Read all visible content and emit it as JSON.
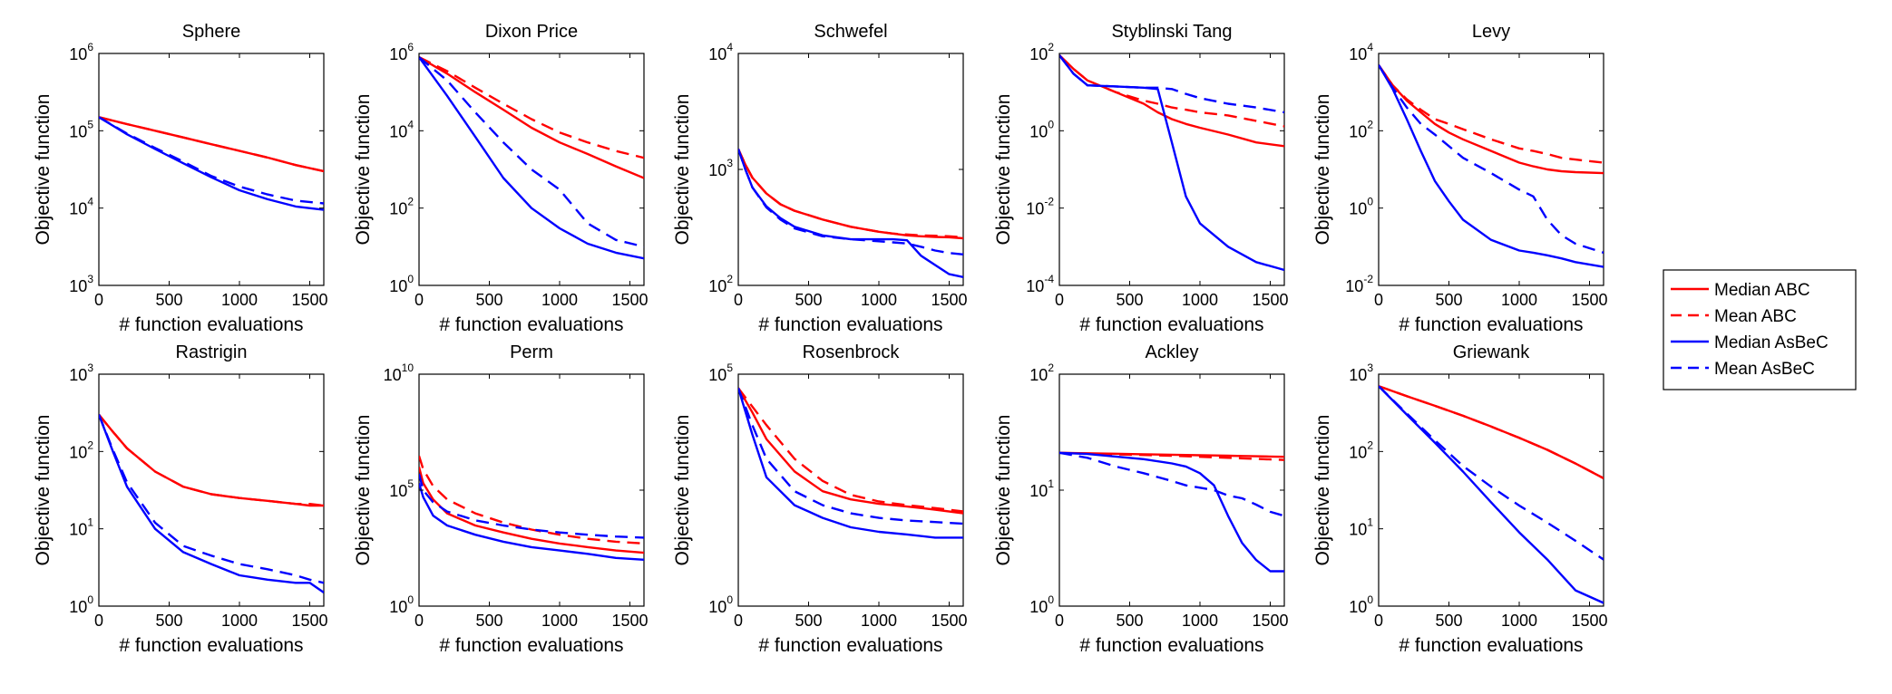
{
  "xlabel": "# function evaluations",
  "ylabel": "Objective function",
  "legend": {
    "placement": "right",
    "entries": [
      {
        "name": "Median ABC",
        "color": "#ff0000",
        "dash": "solid"
      },
      {
        "name": "Mean ABC",
        "color": "#ff0000",
        "dash": "dashed"
      },
      {
        "name": "Median AsBeC",
        "color": "#0000ff",
        "dash": "solid"
      },
      {
        "name": "Mean AsBeC",
        "color": "#0000ff",
        "dash": "dashed"
      }
    ]
  },
  "chart_data": [
    {
      "type": "line",
      "title": "Sphere",
      "xlabel": "# function evaluations",
      "ylabel": "Objective function",
      "xlim": [
        0,
        1600
      ],
      "xticks": [
        "0",
        "500",
        "1000",
        "1500"
      ],
      "yscale": "log",
      "ylim_exp": [
        3,
        6
      ],
      "yticks_exp": [
        "3",
        "4",
        "5",
        "6"
      ],
      "x": [
        0,
        200,
        400,
        600,
        800,
        1000,
        1200,
        1400,
        1600
      ],
      "series": [
        {
          "name": "Median ABC",
          "values": [
            150000,
            122000,
            100000,
            82000,
            67000,
            55000,
            45000,
            36000,
            30000
          ]
        },
        {
          "name": "Mean ABC",
          "values": [
            150000,
            122000,
            100000,
            82000,
            67000,
            55000,
            45000,
            36000,
            30000
          ]
        },
        {
          "name": "Median AsBeC",
          "values": [
            150000,
            90000,
            58000,
            38000,
            25000,
            17000,
            13000,
            10500,
            9500
          ]
        },
        {
          "name": "Mean AsBeC",
          "values": [
            150000,
            92000,
            60000,
            40000,
            26000,
            19000,
            15000,
            12500,
            11500
          ]
        }
      ]
    },
    {
      "type": "line",
      "title": "Dixon Price",
      "xlabel": "# function evaluations",
      "ylabel": "Objective function",
      "xlim": [
        0,
        1600
      ],
      "xticks": [
        "0",
        "500",
        "1000",
        "1500"
      ],
      "yscale": "log",
      "ylim_exp": [
        0,
        6
      ],
      "yticks_exp": [
        "0",
        "2",
        "4",
        "6"
      ],
      "x": [
        0,
        200,
        400,
        600,
        800,
        1000,
        1200,
        1400,
        1600
      ],
      "series": [
        {
          "name": "Median ABC",
          "values": [
            800000,
            300000,
            100000,
            35000,
            12000,
            5000,
            2500,
            1200,
            600
          ]
        },
        {
          "name": "Mean ABC",
          "values": [
            800000,
            350000,
            130000,
            50000,
            20000,
            9000,
            5000,
            3000,
            2000
          ]
        },
        {
          "name": "Median AsBeC",
          "values": [
            800000,
            80000,
            7000,
            600,
            100,
            30,
            12,
            7,
            5
          ]
        },
        {
          "name": "Mean AsBeC",
          "values": [
            800000,
            200000,
            30000,
            5000,
            1000,
            300,
            40,
            15,
            10
          ]
        }
      ]
    },
    {
      "type": "line",
      "title": "Schwefel",
      "xlabel": "# function evaluations",
      "ylabel": "Objective function",
      "xlim": [
        0,
        1600
      ],
      "xticks": [
        "0",
        "500",
        "1000",
        "1500"
      ],
      "yscale": "log",
      "ylim_exp": [
        2,
        4
      ],
      "yticks_exp": [
        "2",
        "3",
        "4"
      ],
      "x": [
        0,
        50,
        100,
        200,
        300,
        400,
        600,
        800,
        1000,
        1100,
        1200,
        1300,
        1400,
        1500,
        1600
      ],
      "series": [
        {
          "name": "Median ABC",
          "values": [
            1500,
            1100,
            850,
            620,
            500,
            440,
            370,
            320,
            290,
            280,
            270,
            265,
            262,
            260,
            255
          ]
        },
        {
          "name": "Mean ABC",
          "values": [
            1500,
            1100,
            850,
            620,
            500,
            440,
            370,
            320,
            290,
            280,
            275,
            270,
            268,
            265,
            260
          ]
        },
        {
          "name": "Median AsBeC",
          "values": [
            1500,
            1000,
            700,
            480,
            380,
            320,
            270,
            250,
            250,
            250,
            245,
            180,
            150,
            125,
            118
          ]
        },
        {
          "name": "Mean AsBeC",
          "values": [
            1500,
            1000,
            700,
            470,
            370,
            310,
            265,
            250,
            240,
            235,
            230,
            215,
            200,
            190,
            185
          ]
        }
      ]
    },
    {
      "type": "line",
      "title": "Styblinski Tang",
      "xlabel": "# function evaluations",
      "ylabel": "Objective function",
      "xlim": [
        0,
        1600
      ],
      "xticks": [
        "0",
        "500",
        "1000",
        "1500"
      ],
      "yscale": "log",
      "ylim_exp": [
        -4,
        2
      ],
      "yticks_exp": [
        "-4",
        "-2",
        "0",
        "2"
      ],
      "x": [
        0,
        100,
        200,
        400,
        600,
        700,
        800,
        900,
        1000,
        1200,
        1400,
        1600
      ],
      "series": [
        {
          "name": "Median ABC",
          "values": [
            90,
            40,
            20,
            10,
            5,
            3,
            2,
            1.5,
            1.2,
            0.8,
            0.5,
            0.4
          ]
        },
        {
          "name": "Mean ABC",
          "values": [
            90,
            40,
            20,
            10,
            6,
            5,
            4,
            3.5,
            3,
            2.5,
            1.8,
            1.3
          ]
        },
        {
          "name": "Median AsBeC",
          "values": [
            90,
            30,
            15,
            14,
            13,
            12,
            0.5,
            0.02,
            0.004,
            0.001,
            0.0004,
            0.00025
          ]
        },
        {
          "name": "Mean AsBeC",
          "values": [
            90,
            30,
            15,
            14,
            13,
            13,
            12,
            9,
            7,
            5,
            4,
            3
          ]
        }
      ]
    },
    {
      "type": "line",
      "title": "Levy",
      "xlabel": "# function evaluations",
      "ylabel": "Objective function",
      "xlim": [
        0,
        1600
      ],
      "xticks": [
        "0",
        "500",
        "1000",
        "1500"
      ],
      "yscale": "log",
      "ylim_exp": [
        -2,
        4
      ],
      "yticks_exp": [
        "-2",
        "0",
        "2",
        "4"
      ],
      "x": [
        0,
        100,
        200,
        300,
        400,
        500,
        600,
        800,
        1000,
        1100,
        1200,
        1300,
        1400,
        1600
      ],
      "series": [
        {
          "name": "Median ABC",
          "values": [
            5000,
            1500,
            600,
            300,
            150,
            90,
            60,
            30,
            15,
            12,
            10,
            9,
            8.5,
            8
          ]
        },
        {
          "name": "Mean ABC",
          "values": [
            5000,
            1500,
            650,
            350,
            200,
            150,
            110,
            60,
            35,
            30,
            25,
            20,
            18,
            15
          ]
        },
        {
          "name": "Median AsBeC",
          "values": [
            5000,
            1200,
            200,
            30,
            5,
            1.5,
            0.5,
            0.15,
            0.08,
            0.07,
            0.06,
            0.05,
            0.04,
            0.03
          ]
        },
        {
          "name": "Mean AsBeC",
          "values": [
            5000,
            1300,
            400,
            150,
            80,
            40,
            20,
            8,
            3,
            2,
            0.5,
            0.2,
            0.12,
            0.07
          ]
        }
      ]
    },
    {
      "type": "line",
      "title": "Rastrigin",
      "xlabel": "# function evaluations",
      "ylabel": "Objective function",
      "xlim": [
        0,
        1600
      ],
      "xticks": [
        "0",
        "500",
        "1000",
        "1500"
      ],
      "yscale": "log",
      "ylim_exp": [
        0,
        3
      ],
      "yticks_exp": [
        "0",
        "1",
        "2",
        "3"
      ],
      "x": [
        0,
        100,
        200,
        400,
        600,
        800,
        1000,
        1200,
        1400,
        1500,
        1600
      ],
      "series": [
        {
          "name": "Median ABC",
          "values": [
            300,
            180,
            110,
            55,
            35,
            28,
            25,
            23,
            21,
            20,
            20
          ]
        },
        {
          "name": "Mean ABC",
          "values": [
            300,
            180,
            110,
            55,
            35,
            28,
            25,
            23,
            21,
            21,
            20
          ]
        },
        {
          "name": "Median AsBeC",
          "values": [
            300,
            100,
            35,
            10,
            5,
            3.5,
            2.5,
            2.2,
            2,
            2,
            1.5
          ]
        },
        {
          "name": "Mean AsBeC",
          "values": [
            300,
            105,
            40,
            12,
            6,
            4.5,
            3.5,
            3,
            2.5,
            2.2,
            2
          ]
        }
      ]
    },
    {
      "type": "line",
      "title": "Perm",
      "xlabel": "# function evaluations",
      "ylabel": "Objective function",
      "xlim": [
        0,
        1600
      ],
      "xticks": [
        "0",
        "500",
        "1000",
        "1500"
      ],
      "yscale": "log",
      "ylim_exp": [
        0,
        10
      ],
      "yticks_exp": [
        "0",
        "5",
        "10"
      ],
      "x": [
        0,
        30,
        100,
        200,
        400,
        600,
        800,
        1000,
        1200,
        1400,
        1600
      ],
      "series": [
        {
          "name": "Median ABC",
          "values": [
            1000000,
            200000,
            40000,
            10000,
            3000,
            1500,
            800,
            500,
            350,
            250,
            200
          ]
        },
        {
          "name": "Mean ABC",
          "values": [
            3000000,
            800000,
            150000,
            40000,
            10000,
            4000,
            2000,
            1200,
            800,
            600,
            500
          ]
        },
        {
          "name": "Median AsBeC",
          "values": [
            200000,
            50000,
            8000,
            3000,
            1200,
            600,
            350,
            250,
            180,
            120,
            100
          ]
        },
        {
          "name": "Mean AsBeC",
          "values": [
            500000,
            100000,
            30000,
            12000,
            5000,
            3000,
            2000,
            1500,
            1200,
            1000,
            900
          ]
        }
      ]
    },
    {
      "type": "line",
      "title": "Rosenbrock",
      "xlabel": "# function evaluations",
      "ylabel": "Objective function",
      "xlim": [
        0,
        1600
      ],
      "xticks": [
        "0",
        "500",
        "1000",
        "1500"
      ],
      "yscale": "log",
      "ylim_exp": [
        0,
        5
      ],
      "yticks_exp": [
        "0",
        "5"
      ],
      "x": [
        0,
        100,
        200,
        400,
        600,
        800,
        1000,
        1200,
        1400,
        1600
      ],
      "series": [
        {
          "name": "Median ABC",
          "values": [
            50000,
            15000,
            4000,
            800,
            300,
            200,
            160,
            140,
            120,
            100
          ]
        },
        {
          "name": "Mean ABC",
          "values": [
            50000,
            20000,
            8000,
            1500,
            500,
            250,
            180,
            150,
            130,
            110
          ]
        },
        {
          "name": "Median AsBeC",
          "values": [
            50000,
            5000,
            600,
            150,
            80,
            50,
            40,
            35,
            30,
            30
          ]
        },
        {
          "name": "Mean AsBeC",
          "values": [
            50000,
            8000,
            1500,
            300,
            150,
            100,
            80,
            70,
            65,
            60
          ]
        }
      ]
    },
    {
      "type": "line",
      "title": "Ackley",
      "xlabel": "# function evaluations",
      "ylabel": "Objective function",
      "xlim": [
        0,
        1600
      ],
      "xticks": [
        "0",
        "500",
        "1000",
        "1500"
      ],
      "yscale": "log",
      "ylim_exp": [
        0,
        2
      ],
      "yticks_exp": [
        "0",
        "1",
        "2"
      ],
      "x": [
        0,
        200,
        400,
        600,
        800,
        900,
        1000,
        1100,
        1200,
        1300,
        1400,
        1500,
        1600
      ],
      "series": [
        {
          "name": "Median ABC",
          "values": [
            21,
            20.8,
            20.6,
            20.4,
            20.2,
            20.1,
            20,
            19.9,
            19.8,
            19.7,
            19.6,
            19.5,
            19.4
          ]
        },
        {
          "name": "Mean ABC",
          "values": [
            21,
            20.7,
            20.4,
            20.1,
            19.8,
            19.6,
            19.4,
            19.2,
            19,
            18.8,
            18.6,
            18.4,
            18.2
          ]
        },
        {
          "name": "Median AsBeC",
          "values": [
            21,
            20.5,
            19.5,
            18.5,
            17,
            16,
            14,
            11,
            6,
            3.5,
            2.5,
            2,
            2
          ]
        },
        {
          "name": "Mean AsBeC",
          "values": [
            21,
            19,
            16,
            14,
            12,
            11,
            10.5,
            10,
            9,
            8.5,
            7.5,
            6.5,
            6
          ]
        }
      ]
    },
    {
      "type": "line",
      "title": "Griewank",
      "xlabel": "# function evaluations",
      "ylabel": "Objective function",
      "xlim": [
        0,
        1600
      ],
      "xticks": [
        "0",
        "500",
        "1000",
        "1500"
      ],
      "yscale": "log",
      "ylim_exp": [
        0,
        3
      ],
      "yticks_exp": [
        "0",
        "1",
        "2",
        "3"
      ],
      "x": [
        0,
        200,
        400,
        600,
        800,
        1000,
        1200,
        1400,
        1600
      ],
      "series": [
        {
          "name": "Median ABC",
          "values": [
            700,
            520,
            390,
            290,
            210,
            150,
            105,
            70,
            45
          ]
        },
        {
          "name": "Mean ABC",
          "values": [
            700,
            520,
            390,
            290,
            210,
            150,
            105,
            70,
            45
          ]
        },
        {
          "name": "Median AsBeC",
          "values": [
            700,
            300,
            130,
            55,
            22,
            9,
            4,
            1.6,
            1.1
          ]
        },
        {
          "name": "Mean AsBeC",
          "values": [
            700,
            310,
            140,
            65,
            35,
            20,
            12,
            7,
            4
          ]
        }
      ]
    }
  ]
}
